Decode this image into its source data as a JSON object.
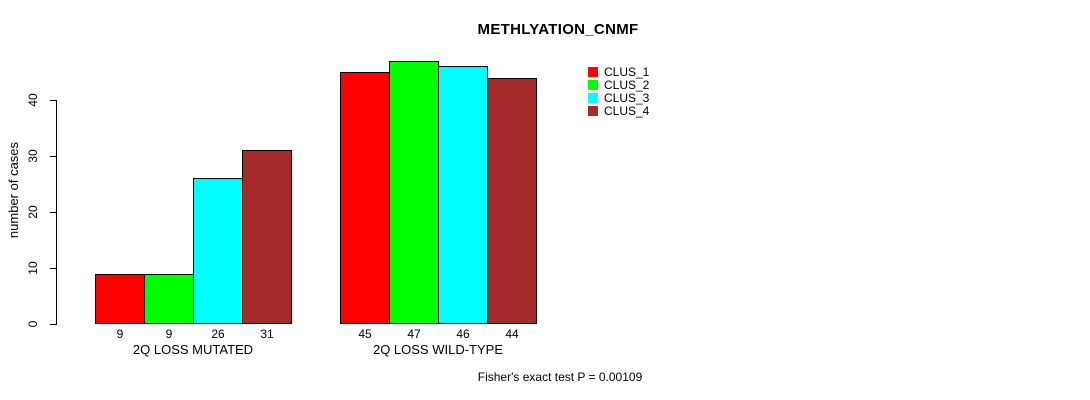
{
  "figure": {
    "title": "METHLYATION_CNMF",
    "footer": "Fisher's exact test P = 0.00109"
  },
  "chart_data": {
    "type": "bar",
    "title": "METHLYATION_CNMF",
    "xlabel": "",
    "ylabel": "number of cases",
    "ylim": [
      0,
      40
    ],
    "yticks": [
      0,
      10,
      20,
      30,
      40
    ],
    "grid": false,
    "legend_position": "right-of-plot-top",
    "bar_value_labels_shown": true,
    "categories": [
      "2Q LOSS MUTATED",
      "2Q LOSS WILD-TYPE"
    ],
    "series": [
      {
        "name": "CLUS_1",
        "color": "#ff0000",
        "values": [
          9,
          45
        ]
      },
      {
        "name": "CLUS_2",
        "color": "#00ff00",
        "values": [
          9,
          47
        ]
      },
      {
        "name": "CLUS_3",
        "color": "#00ffff",
        "values": [
          26,
          46
        ]
      },
      {
        "name": "CLUS_4",
        "color": "#a52a2a",
        "values": [
          31,
          44
        ]
      }
    ],
    "annotation": "Fisher's exact test P = 0.00109",
    "axis_color": "#000000",
    "bar_border_color": "#000000",
    "text_color": "#000000",
    "background_color": "#ffffff"
  }
}
